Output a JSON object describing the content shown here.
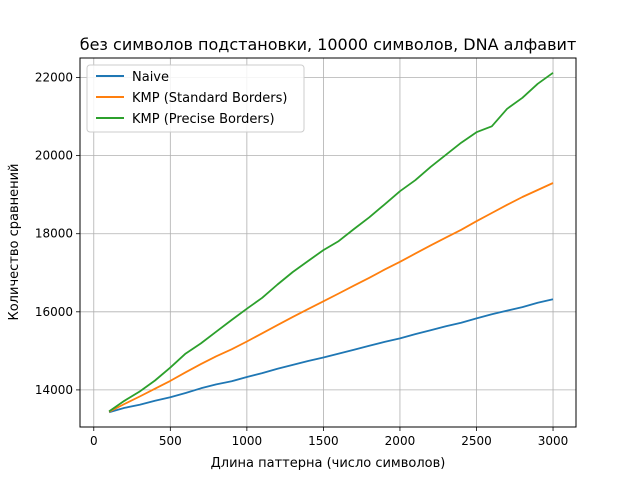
{
  "chart_data": {
    "type": "line",
    "title": "без символов подстановки, 10000 символов, DNA алфавит",
    "xlabel": "Длина паттерна (число символов)",
    "ylabel": "Количество сравнений",
    "xlim": [
      -90,
      3150
    ],
    "ylim": [
      13050,
      22500
    ],
    "xticks": [
      0,
      500,
      1000,
      1500,
      2000,
      2500,
      3000
    ],
    "yticks": [
      14000,
      16000,
      18000,
      20000,
      22000
    ],
    "grid": true,
    "legend_position": "top-left",
    "x": [
      100,
      200,
      300,
      400,
      500,
      600,
      700,
      800,
      900,
      1000,
      1100,
      1200,
      1300,
      1400,
      1500,
      1600,
      1700,
      1800,
      1900,
      2000,
      2100,
      2200,
      2300,
      2400,
      2500,
      2600,
      2700,
      2800,
      2900,
      3000
    ],
    "series": [
      {
        "name": "Naive",
        "color": "#1f77b4",
        "values": [
          13430,
          13540,
          13620,
          13720,
          13810,
          13920,
          14040,
          14140,
          14220,
          14330,
          14430,
          14540,
          14640,
          14740,
          14830,
          14930,
          15030,
          15130,
          15230,
          15320,
          15430,
          15530,
          15630,
          15720,
          15830,
          15940,
          16030,
          16120,
          16230,
          16320
        ]
      },
      {
        "name": "KMP (Standard Borders)",
        "color": "#ff7f0e",
        "values": [
          13440,
          13640,
          13830,
          14030,
          14230,
          14450,
          14660,
          14860,
          15040,
          15240,
          15450,
          15660,
          15870,
          16070,
          16270,
          16470,
          16670,
          16870,
          17080,
          17280,
          17490,
          17700,
          17900,
          18100,
          18320,
          18530,
          18740,
          18940,
          19120,
          19300
        ]
      },
      {
        "name": "KMP (Precise Borders)",
        "color": "#2ca02c",
        "values": [
          13450,
          13720,
          13960,
          14240,
          14570,
          14930,
          15190,
          15490,
          15790,
          16080,
          16360,
          16700,
          17020,
          17300,
          17580,
          17810,
          18120,
          18420,
          18750,
          19090,
          19370,
          19710,
          20020,
          20330,
          20600,
          20750,
          21200,
          21480,
          21840,
          22120
        ]
      }
    ]
  }
}
